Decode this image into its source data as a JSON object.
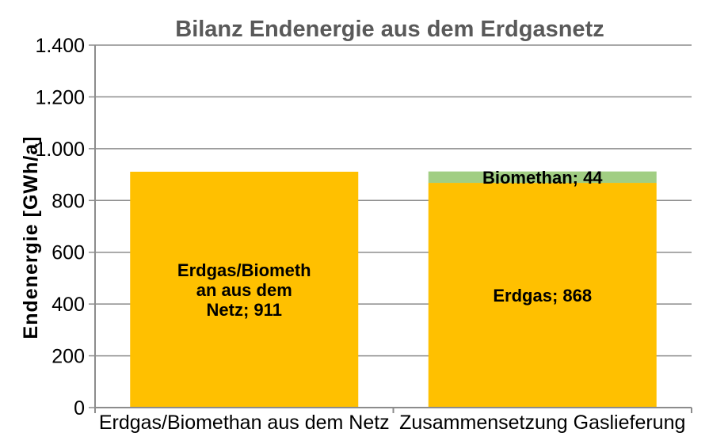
{
  "chart_data": {
    "type": "bar",
    "stacked": true,
    "title": "Bilanz Endenergie aus dem Erdgasnetz",
    "ylabel": "Endenergie [GWh/a]",
    "xlabel": "",
    "ylim": [
      0,
      1400
    ],
    "grid": true,
    "legend": false,
    "yticks": {
      "values": [
        0,
        200,
        400,
        600,
        800,
        1000,
        1200,
        1400
      ],
      "labels": [
        "0",
        "200",
        "400",
        "600",
        "800",
        "1.000",
        "1.200",
        "1.400"
      ]
    },
    "categories": [
      "Erdgas/Biomethan aus dem Netz",
      "Zusammensetzung Gaslieferung"
    ],
    "bars": [
      {
        "category": "Erdgas/Biomethan aus dem Netz",
        "segments": [
          {
            "name": "erdgas-biomethan-aus-dem-netz",
            "value": 911,
            "color": "#FFC000",
            "label_lines": [
              "Erdgas/Biometh",
              "an aus dem",
              "Netz; 911"
            ]
          }
        ]
      },
      {
        "category": "Zusammensetzung Gaslieferung",
        "segments": [
          {
            "name": "erdgas",
            "value": 868,
            "color": "#FFC000",
            "label_lines": [
              "Erdgas; 868"
            ]
          },
          {
            "name": "biomethan",
            "value": 44,
            "color": "#A1CE83",
            "label_lines": [
              "Biomethan; 44"
            ]
          }
        ]
      }
    ],
    "colors": {
      "erdgas_fill": "#FFC000",
      "biomethan_fill": "#A1CE83",
      "title_text": "#595959",
      "axis_and_grid": "#8C8C8C",
      "label_text": "#000000",
      "background": "#FFFFFF"
    }
  }
}
